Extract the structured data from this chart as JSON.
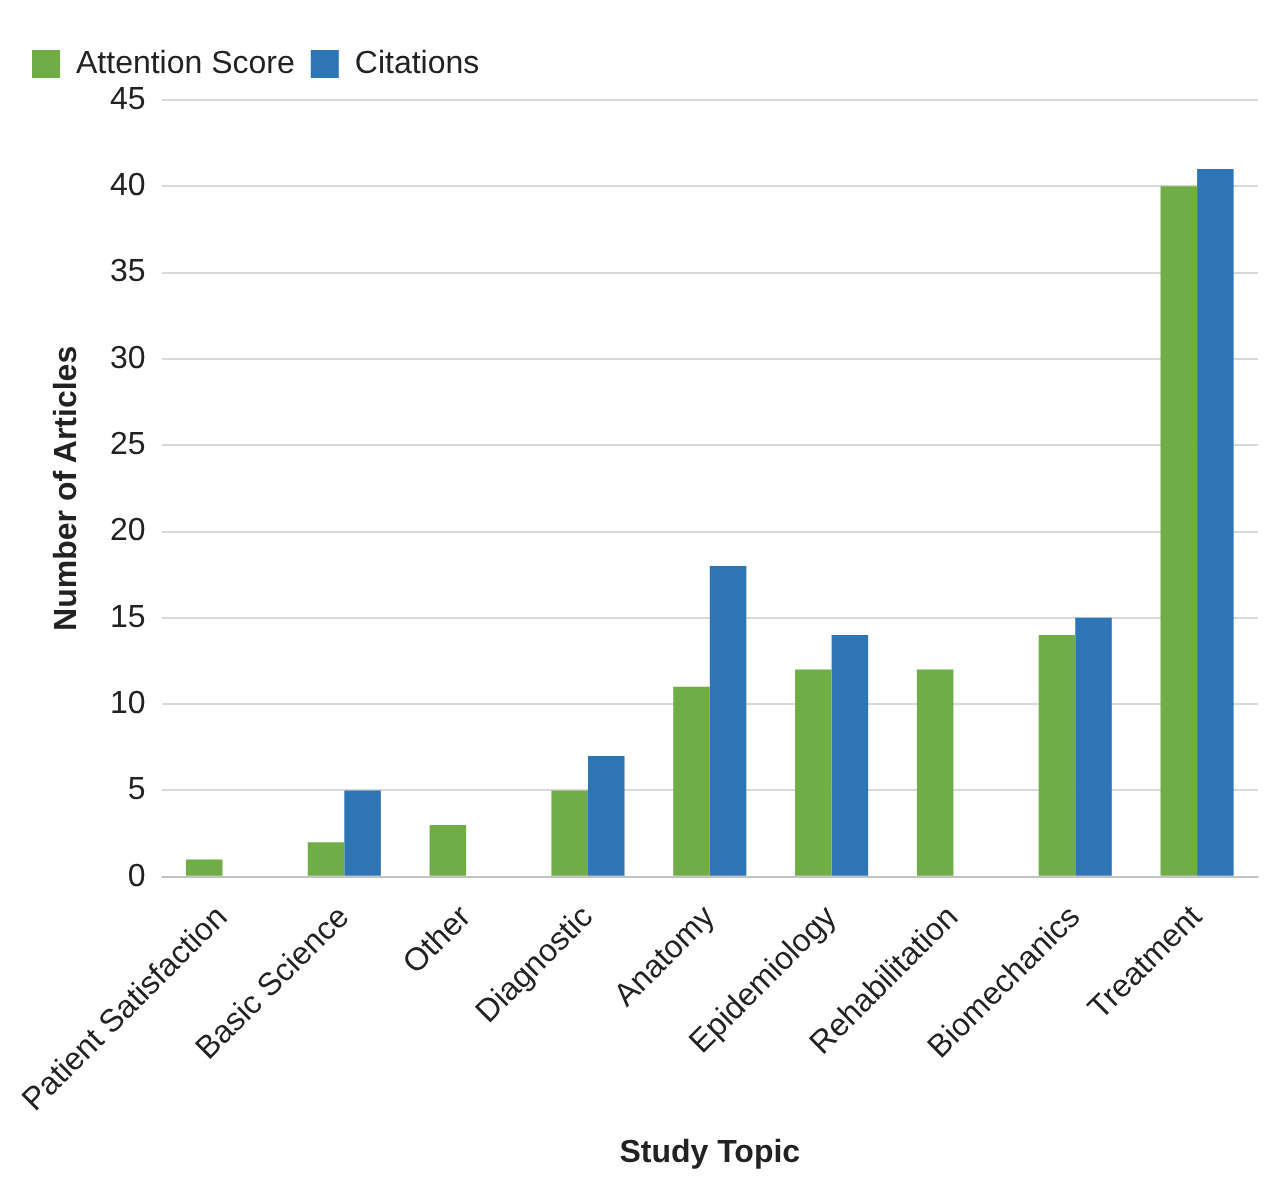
{
  "chart_data": {
    "type": "bar",
    "xlabel": "Study Topic",
    "ylabel": "Number of Articles",
    "categories": [
      "Patient Satisfaction",
      "Basic Science",
      "Other",
      "Diagnostic",
      "Anatomy",
      "Epidemiology",
      "Rehabilitation",
      "Biomechanics",
      "Treatment"
    ],
    "series": [
      {
        "name": "Attention Score",
        "color": "#70ad47",
        "values": [
          1,
          2,
          3,
          5,
          11,
          12,
          12,
          14,
          40
        ]
      },
      {
        "name": "Citations",
        "color": "#2e75b6",
        "values": [
          0,
          5,
          0,
          7,
          18,
          14,
          0,
          15,
          41
        ]
      }
    ],
    "ylim": [
      0,
      45
    ],
    "yticks": [
      0,
      5,
      10,
      15,
      20,
      25,
      30,
      35,
      40,
      45
    ],
    "grid": "y",
    "legend": "top left"
  }
}
